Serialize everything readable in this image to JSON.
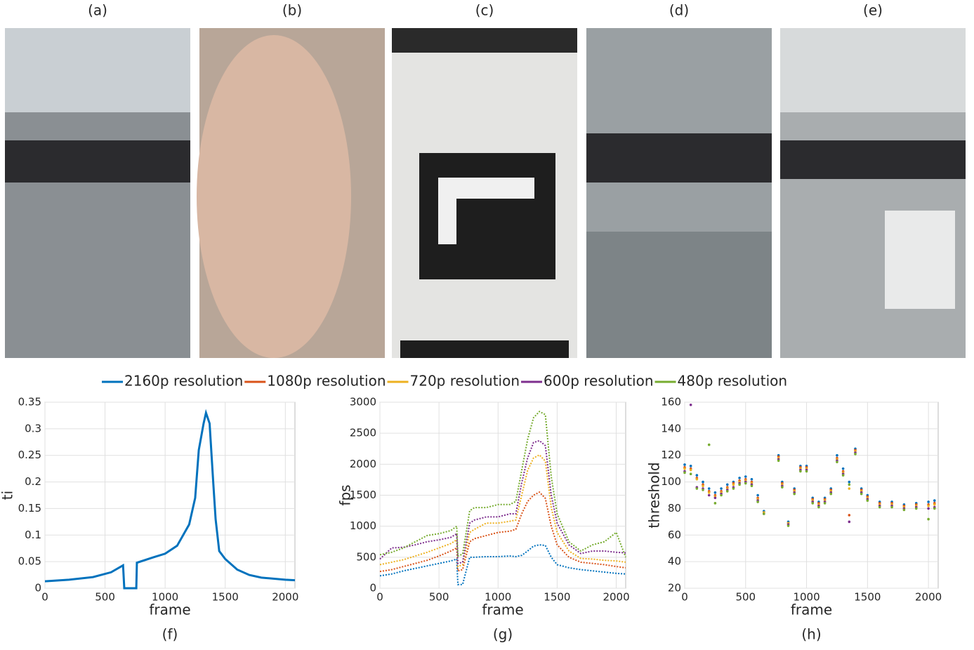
{
  "panels": [
    {
      "label": "(a)"
    },
    {
      "label": "(b)"
    },
    {
      "label": "(c)"
    },
    {
      "label": "(d)"
    },
    {
      "label": "(e)"
    }
  ],
  "chart_data": [
    {
      "type": "line",
      "caption": "(f)",
      "xlabel": "frame",
      "ylabel": "ti",
      "xlim": [
        0,
        2080
      ],
      "xticks": [
        0,
        500,
        1000,
        1500,
        2000
      ],
      "ylim": [
        0,
        0.35
      ],
      "yticks": [
        0,
        0.05,
        0.1,
        0.15,
        0.2,
        0.25,
        0.3,
        0.35
      ],
      "grid": true,
      "x": [
        0,
        200,
        400,
        550,
        650,
        660,
        760,
        765,
        900,
        1000,
        1100,
        1200,
        1250,
        1280,
        1320,
        1340,
        1370,
        1400,
        1420,
        1450,
        1500,
        1600,
        1700,
        1800,
        2000,
        2080
      ],
      "series": [
        {
          "name": "2160p resolution",
          "color": "#0072bd",
          "values": [
            0.013,
            0.016,
            0.021,
            0.03,
            0.043,
            0,
            0,
            0.048,
            0.058,
            0.065,
            0.08,
            0.12,
            0.17,
            0.26,
            0.31,
            0.33,
            0.31,
            0.2,
            0.13,
            0.07,
            0.055,
            0.035,
            0.025,
            0.02,
            0.016,
            0.015
          ]
        }
      ]
    },
    {
      "type": "line",
      "caption": "(g)",
      "xlabel": "frame",
      "ylabel": "fps",
      "xlim": [
        0,
        2080
      ],
      "xticks": [
        0,
        500,
        1000,
        1500,
        2000
      ],
      "ylim": [
        0,
        3000
      ],
      "yticks": [
        0,
        500,
        1000,
        1500,
        2000,
        2500,
        3000
      ],
      "grid": true,
      "x": [
        0,
        100,
        200,
        300,
        400,
        500,
        600,
        650,
        660,
        700,
        760,
        800,
        900,
        1000,
        1100,
        1150,
        1200,
        1250,
        1300,
        1350,
        1400,
        1450,
        1500,
        1600,
        1700,
        1800,
        1900,
        2000,
        2080
      ],
      "series": [
        {
          "name": "2160p resolution",
          "color": "#0072bd",
          "values": [
            200,
            230,
            280,
            320,
            360,
            400,
            440,
            470,
            60,
            60,
            500,
            500,
            510,
            510,
            520,
            510,
            530,
            600,
            680,
            700,
            690,
            500,
            380,
            330,
            300,
            280,
            260,
            240,
            230
          ]
        },
        {
          "name": "1080p resolution",
          "color": "#d95319",
          "values": [
            270,
            300,
            350,
            400,
            450,
            520,
            600,
            650,
            280,
            300,
            750,
            800,
            850,
            900,
            920,
            950,
            1200,
            1400,
            1500,
            1550,
            1450,
            1000,
            700,
            500,
            420,
            400,
            380,
            350,
            330
          ]
        },
        {
          "name": "720p resolution",
          "color": "#edb120",
          "values": [
            380,
            420,
            460,
            520,
            580,
            650,
            720,
            780,
            350,
            380,
            900,
            950,
            1050,
            1050,
            1080,
            1100,
            1500,
            1900,
            2100,
            2150,
            2050,
            1300,
            900,
            600,
            480,
            470,
            450,
            440,
            420
          ]
        },
        {
          "name": "600p resolution",
          "color": "#7e2f8e",
          "values": [
            470,
            650,
            660,
            700,
            750,
            780,
            820,
            880,
            400,
            420,
            1050,
            1100,
            1150,
            1150,
            1200,
            1200,
            1700,
            2100,
            2350,
            2380,
            2300,
            1500,
            1050,
            700,
            560,
            600,
            600,
            580,
            570
          ]
        },
        {
          "name": "480p resolution",
          "color": "#77ac30",
          "values": [
            540,
            580,
            650,
            750,
            850,
            880,
            930,
            1000,
            520,
            550,
            1250,
            1300,
            1300,
            1350,
            1350,
            1400,
            1900,
            2400,
            2750,
            2850,
            2800,
            1800,
            1200,
            750,
            600,
            700,
            750,
            900,
            500
          ]
        }
      ]
    },
    {
      "type": "scatter",
      "caption": "(h)",
      "xlabel": "frame",
      "ylabel": "threshold",
      "xlim": [
        0,
        2080
      ],
      "xticks": [
        0,
        500,
        1000,
        1500,
        2000
      ],
      "ylim": [
        20,
        160
      ],
      "yticks": [
        20,
        40,
        60,
        80,
        100,
        120,
        140,
        160
      ],
      "grid": true,
      "x": [
        0,
        50,
        100,
        150,
        200,
        250,
        300,
        350,
        400,
        450,
        500,
        550,
        600,
        650,
        770,
        800,
        850,
        900,
        950,
        1000,
        1050,
        1100,
        1150,
        1200,
        1250,
        1300,
        1350,
        1400,
        1450,
        1500,
        1600,
        1700,
        1800,
        1900,
        2000,
        2050
      ],
      "series": [
        {
          "name": "2160p resolution",
          "color": "#0072bd",
          "values": [
            113,
            112,
            105,
            100,
            95,
            92,
            95,
            98,
            100,
            103,
            104,
            102,
            90,
            78,
            120,
            100,
            70,
            95,
            112,
            112,
            88,
            85,
            88,
            95,
            120,
            110,
            100,
            125,
            95,
            90,
            85,
            85,
            83,
            84,
            85,
            86
          ]
        },
        {
          "name": "1080p resolution",
          "color": "#d95319",
          "values": [
            111,
            110,
            103,
            98,
            93,
            90,
            93,
            96,
            99,
            101,
            102,
            100,
            88,
            77,
            119,
            99,
            69,
            94,
            111,
            111,
            87,
            84,
            87,
            94,
            118,
            108,
            75,
            124,
            94,
            89,
            84,
            84,
            82,
            83,
            83,
            84
          ]
        },
        {
          "name": "720p resolution",
          "color": "#edb120",
          "values": [
            110,
            109,
            102,
            97,
            92,
            89,
            92,
            95,
            98,
            100,
            101,
            99,
            87,
            77,
            118,
            98,
            69,
            93,
            110,
            110,
            86,
            83,
            86,
            93,
            117,
            107,
            95,
            123,
            93,
            88,
            83,
            83,
            81,
            82,
            82,
            83
          ]
        },
        {
          "name": "600p resolution",
          "color": "#7e2f8e",
          "values": [
            108,
            158,
            96,
            95,
            90,
            88,
            91,
            94,
            96,
            99,
            100,
            98,
            86,
            76,
            117,
            97,
            68,
            92,
            109,
            109,
            85,
            82,
            85,
            92,
            116,
            106,
            70,
            122,
            92,
            87,
            82,
            82,
            80,
            81,
            80,
            81
          ]
        },
        {
          "name": "480p resolution",
          "color": "#77ac30",
          "values": [
            107,
            106,
            95,
            94,
            128,
            84,
            90,
            93,
            95,
            98,
            99,
            97,
            85,
            76,
            116,
            96,
            67,
            91,
            108,
            108,
            84,
            81,
            84,
            91,
            115,
            105,
            98,
            121,
            91,
            86,
            81,
            81,
            79,
            80,
            72,
            80
          ]
        }
      ]
    }
  ]
}
